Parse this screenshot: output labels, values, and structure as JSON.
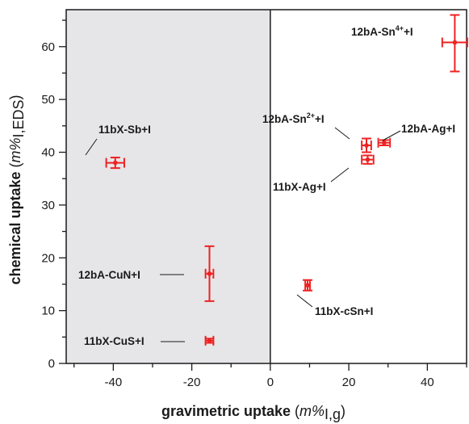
{
  "chart_data": {
    "type": "scatter",
    "title": "",
    "xlabel": "gravimetric uptake",
    "xlabel_unit_text": "m%",
    "xlabel_unit_sub": "I,g",
    "ylabel": "chemical uptake",
    "ylabel_unit_text": "m%",
    "ylabel_unit_sub": "I,EDS",
    "xlim": [
      -52,
      50
    ],
    "ylim": [
      0,
      67
    ],
    "x_ticks": [
      -40,
      -20,
      0,
      20,
      40
    ],
    "y_ticks": [
      0,
      10,
      20,
      30,
      40,
      50,
      60
    ],
    "x_minor_step": 10,
    "y_minor_step": 5,
    "grid": false,
    "shaded_region": {
      "x_from": -52,
      "x_to": 0,
      "color": "#e6e6e8"
    },
    "zero_line_x": 0,
    "marker_color": "#ee2222",
    "points": [
      {
        "label": "12bA-Sn",
        "sup": "4+",
        "suffix": "+I",
        "x": 47,
        "y": 60.8,
        "xerr": 3.2,
        "yerr_lo": 5.5,
        "yerr_hi": 5.2
      },
      {
        "label": "12bA-Sn",
        "sup": "2+",
        "suffix": "+I",
        "x": 24.5,
        "y": 41.3,
        "xerr": 1.2,
        "yerr_lo": 1.3,
        "yerr_hi": 1.3
      },
      {
        "label": "12bA-Ag+I",
        "sup": "",
        "suffix": "",
        "x": 29,
        "y": 41.8,
        "xerr": 1.5,
        "yerr_lo": 0.5,
        "yerr_hi": 0.5
      },
      {
        "label": "11bX-Ag+I",
        "sup": "",
        "suffix": "",
        "x": 24.8,
        "y": 38.6,
        "xerr": 1.5,
        "yerr_lo": 0.8,
        "yerr_hi": 0.8
      },
      {
        "label": "11bX-Sb+I",
        "sup": "",
        "suffix": "",
        "x": -39.5,
        "y": 38,
        "xerr": 2.3,
        "yerr_lo": 1,
        "yerr_hi": 1
      },
      {
        "label": "12bA-CuN+I",
        "sup": "",
        "suffix": "",
        "x": -15.5,
        "y": 17,
        "xerr": 1,
        "yerr_lo": 5.2,
        "yerr_hi": 5.2
      },
      {
        "label": "11bX-cSn+I",
        "sup": "",
        "suffix": "",
        "x": 9.5,
        "y": 14.8,
        "xerr": 0.6,
        "yerr_lo": 1,
        "yerr_hi": 1
      },
      {
        "label": "11bX-CuS+I",
        "sup": "",
        "suffix": "",
        "x": -15.5,
        "y": 4.3,
        "xerr": 1,
        "yerr_lo": 0.4,
        "yerr_hi": 0.4
      }
    ]
  }
}
